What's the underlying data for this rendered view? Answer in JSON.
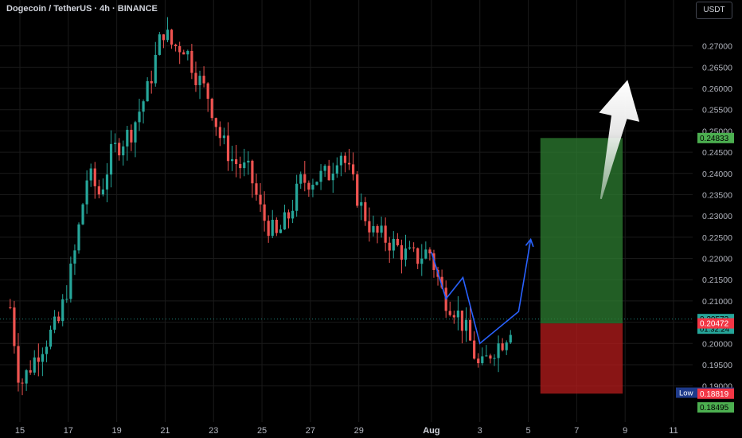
{
  "header": {
    "title": "Dogecoin / TetherUS · 4h · BINANCE",
    "currency": "USDT"
  },
  "colors": {
    "background": "#000000",
    "up": "#26a69a",
    "down": "#ef5350",
    "grid": "#1a1a1a",
    "text": "#b2b5be",
    "path": "#2962ff",
    "profit": "#2e7d32",
    "loss": "#b71c1c"
  },
  "chart_data": {
    "type": "candlestick",
    "ylim": [
      0.1815,
      0.2808
    ],
    "y_ticks": [
      "0.27000",
      "0.26500",
      "0.26000",
      "0.25500",
      "0.25000",
      "0.24500",
      "0.24000",
      "0.23500",
      "0.23000",
      "0.22500",
      "0.22000",
      "0.21500",
      "0.21000",
      "0.20500",
      "0.20000",
      "0.19500",
      "0.19000"
    ],
    "x_ticks": [
      {
        "label": "15",
        "day": 15
      },
      {
        "label": "17",
        "day": 17
      },
      {
        "label": "19",
        "day": 19
      },
      {
        "label": "21",
        "day": 21
      },
      {
        "label": "23",
        "day": 23
      },
      {
        "label": "25",
        "day": 25
      },
      {
        "label": "27",
        "day": 27
      },
      {
        "label": "29",
        "day": 29
      },
      {
        "label": "Aug",
        "day": 32,
        "bold": true
      },
      {
        "label": "3",
        "day": 34
      },
      {
        "label": "5",
        "day": 36
      },
      {
        "label": "7",
        "day": 38
      },
      {
        "label": "9",
        "day": 40
      },
      {
        "label": "11",
        "day": 42
      }
    ],
    "candle_anchors": [
      [
        14.6,
        0.2085
      ],
      [
        15.0,
        0.19
      ],
      [
        15.8,
        0.1985
      ],
      [
        16.6,
        0.205
      ],
      [
        17.2,
        0.219
      ],
      [
        17.8,
        0.24
      ],
      [
        18.3,
        0.235
      ],
      [
        18.8,
        0.245
      ],
      [
        19.6,
        0.25
      ],
      [
        20.3,
        0.26
      ],
      [
        20.9,
        0.274
      ],
      [
        21.3,
        0.27
      ],
      [
        21.8,
        0.27
      ],
      [
        22.3,
        0.263
      ],
      [
        22.8,
        0.258
      ],
      [
        23.3,
        0.248
      ],
      [
        23.8,
        0.243
      ],
      [
        24.5,
        0.24
      ],
      [
        25.0,
        0.23
      ],
      [
        25.6,
        0.225
      ],
      [
        26.1,
        0.23
      ],
      [
        26.6,
        0.238
      ],
      [
        27.3,
        0.239
      ],
      [
        27.8,
        0.24
      ],
      [
        28.2,
        0.246
      ],
      [
        28.6,
        0.24
      ],
      [
        29.1,
        0.232
      ],
      [
        29.6,
        0.226
      ],
      [
        30.0,
        0.225
      ],
      [
        30.5,
        0.223
      ],
      [
        30.9,
        0.221
      ],
      [
        31.4,
        0.22
      ],
      [
        31.9,
        0.222
      ],
      [
        32.5,
        0.211
      ],
      [
        33.0,
        0.208
      ],
      [
        33.5,
        0.202
      ],
      [
        34.0,
        0.1935
      ],
      [
        34.5,
        0.1985
      ],
      [
        35.0,
        0.201
      ],
      [
        35.4,
        0.2057
      ]
    ],
    "current_price": 0.20573,
    "countdown": "01:32:24",
    "position": {
      "start_day": 36.5,
      "end_day": 39.9,
      "entry": 0.20472,
      "target": 0.24833,
      "stop": 0.18819
    },
    "projection_path": [
      [
        32.0,
        0.2215
      ],
      [
        32.6,
        0.2105
      ],
      [
        33.3,
        0.2155
      ],
      [
        34.0,
        0.2
      ],
      [
        35.6,
        0.2075
      ],
      [
        36.1,
        0.2245
      ]
    ],
    "arrow": {
      "from": [
        39.0,
        0.234
      ],
      "to": [
        40.1,
        0.262
      ]
    },
    "price_labels": [
      {
        "name": "target-label",
        "value": "0.24833",
        "price": 0.24833,
        "bg": "#4caf50",
        "fg": "#000000"
      },
      {
        "name": "current-price-label",
        "value": "0.20573",
        "price": 0.20573,
        "bg": "#26a69a",
        "fg": "#000000"
      },
      {
        "name": "entry-label",
        "value": "0.20472",
        "price": 0.20472,
        "bg": "#f23645",
        "fg": "#ffffff"
      },
      {
        "name": "low-label",
        "value": "0.18842",
        "price": 0.18842,
        "bg": "#1e3a8a",
        "fg": "#ffffff",
        "prefix": "Low"
      },
      {
        "name": "stop-label",
        "value": "0.18819",
        "price": 0.18819,
        "bg": "#f23645",
        "fg": "#ffffff"
      },
      {
        "name": "bottom-label",
        "value": "0.18495",
        "price": 0.18495,
        "bg": "#4caf50",
        "fg": "#000000"
      }
    ]
  }
}
